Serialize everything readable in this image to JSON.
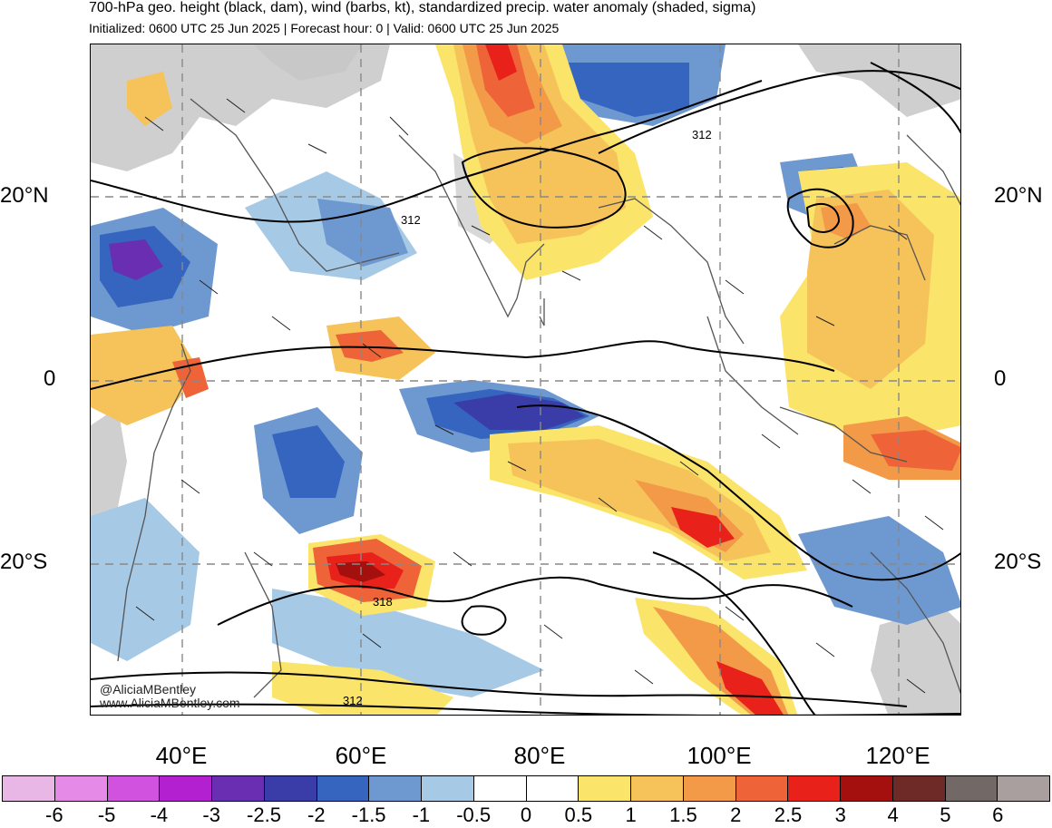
{
  "header": {
    "title": "700-hPa geo. height (black, dam), wind (barbs, kt), standardized precip. water anomaly (shaded, sigma)",
    "subtitle": "Initialized: 0600 UTC 25 Jun 2025 | Forecast hour: 0 | Valid: 0600 UTC 25 Jun 2025"
  },
  "axes": {
    "lat_labels": [
      "20°N",
      "0",
      "20°S"
    ],
    "lon_labels": [
      "40°E",
      "60°E",
      "80°E",
      "100°E",
      "120°E"
    ],
    "lat_range": [
      -37,
      36
    ],
    "lon_range": [
      30,
      127
    ],
    "grid": true
  },
  "contours": {
    "labels": [
      "312",
      "312",
      "318",
      "312"
    ],
    "units": "dam"
  },
  "credit": {
    "line1": "@AliciaMBentley",
    "line2": "www.AliciaMBentley.com"
  },
  "colorbar": {
    "labels": [
      "-6",
      "-5",
      "-4",
      "-3",
      "-2.5",
      "-2",
      "-1.5",
      "-1",
      "-0.5",
      "0",
      "0.5",
      "1",
      "1.5",
      "2",
      "2.5",
      "3",
      "4",
      "5",
      "6"
    ],
    "colors": [
      "#e8b7e6",
      "#e58ae6",
      "#d252e0",
      "#b320cf",
      "#6a2eb3",
      "#3a3da8",
      "#3565bf",
      "#6e98d0",
      "#a6c9e6",
      "#ffffff",
      "#ffffff",
      "#fbe46a",
      "#f6c25a",
      "#f39a49",
      "#ee6438",
      "#e8221b",
      "#a4100d",
      "#6e2a27",
      "#726866",
      "#a99f9e"
    ]
  },
  "colors": {
    "land_no_data": "#cfcfcf",
    "coastline": "#555555",
    "contour": "#000000",
    "grid": "#888888"
  }
}
